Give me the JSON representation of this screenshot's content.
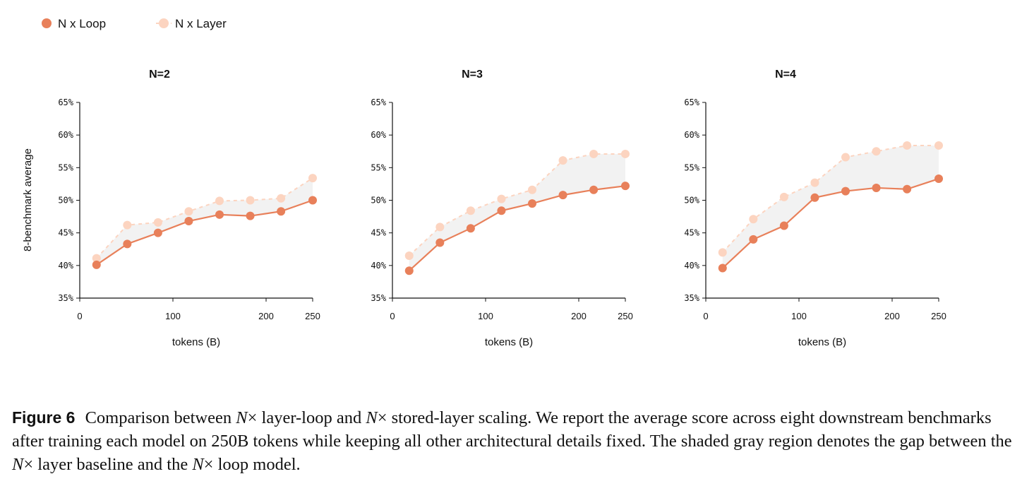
{
  "chart_data": {
    "type": "line",
    "legend": {
      "placement": "top-left",
      "entries": [
        {
          "key": "loop",
          "label": "N x Loop",
          "color": "#e8805a",
          "style": "solid"
        },
        {
          "key": "layer",
          "label": "N x Layer",
          "color": "#fcd4c0",
          "style": "dashed"
        }
      ]
    },
    "ylabel": "8-benchmark average",
    "xlabel": "tokens (B)",
    "xlim": [
      0,
      250
    ],
    "ylim": [
      35,
      65
    ],
    "xticks": [
      0,
      100,
      200,
      250
    ],
    "yticks": [
      35,
      40,
      45,
      50,
      55,
      60,
      65
    ],
    "ytick_suffix": "%",
    "shaded_gap_color": "#f2f2f2",
    "panels": [
      {
        "title": "N=2",
        "x": [
          18,
          51,
          84,
          117,
          150,
          183,
          216,
          250
        ],
        "series": [
          {
            "key": "loop",
            "name": "N x Loop",
            "values": [
              40.1,
              43.3,
              45.0,
              46.8,
              47.8,
              47.6,
              48.3,
              50.0
            ]
          },
          {
            "key": "layer",
            "name": "N x Layer",
            "values": [
              41.1,
              46.2,
              46.6,
              48.3,
              49.9,
              50.0,
              50.3,
              53.4
            ]
          }
        ]
      },
      {
        "title": "N=3",
        "x": [
          18,
          51,
          84,
          117,
          150,
          183,
          216,
          250
        ],
        "series": [
          {
            "key": "loop",
            "name": "N x Loop",
            "values": [
              39.2,
              43.5,
              45.7,
              48.4,
              49.5,
              50.8,
              51.6,
              52.2
            ]
          },
          {
            "key": "layer",
            "name": "N x Layer",
            "values": [
              41.5,
              45.9,
              48.4,
              50.2,
              51.6,
              56.1,
              57.1,
              57.1
            ]
          }
        ]
      },
      {
        "title": "N=4",
        "x": [
          18,
          51,
          84,
          117,
          150,
          183,
          216,
          250
        ],
        "series": [
          {
            "key": "loop",
            "name": "N x Loop",
            "values": [
              39.6,
              44.0,
              46.1,
              50.4,
              51.4,
              51.9,
              51.7,
              53.3
            ]
          },
          {
            "key": "layer",
            "name": "N x Layer",
            "values": [
              42.0,
              47.1,
              50.5,
              52.7,
              56.6,
              57.5,
              58.4,
              58.4
            ]
          }
        ]
      }
    ]
  },
  "caption": {
    "label": "Figure 6",
    "part1": "Comparison between ",
    "var1": "N",
    "part2": "× layer-loop and ",
    "var2": "N",
    "part3": "× stored-layer scaling. We report the average score across eight downstream benchmarks after training each model on 250B tokens while keeping all other architectural details fixed. The shaded gray region denotes the gap between the ",
    "var3": "N",
    "part4": "× layer baseline and the ",
    "var4": "N",
    "part5": "× loop model."
  }
}
